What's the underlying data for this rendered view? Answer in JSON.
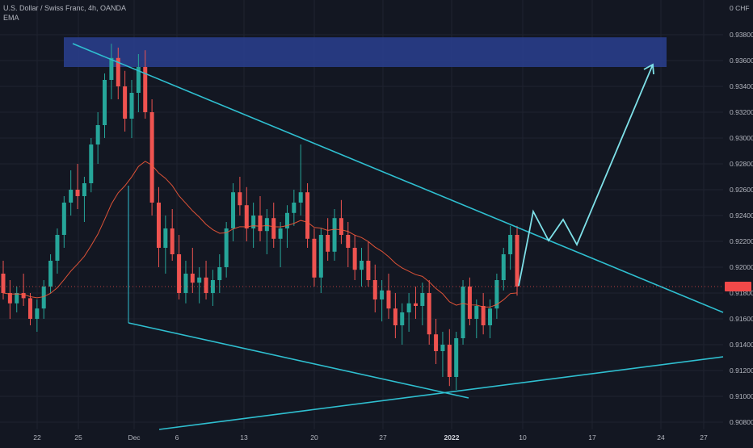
{
  "header": {
    "symbol_line": "U.S. Dollar / Swiss Franc, 4h, OANDA",
    "indicator": "EMA"
  },
  "colors": {
    "background": "#131722",
    "grid": "#1f2330",
    "up": "#26a69a",
    "down": "#ef5350",
    "ema": "#f4593a",
    "trendline": "#2fbfd0",
    "projection": "#7ee0e8",
    "zone": "#2a3f8f",
    "price_tag": "#f24949"
  },
  "chart_data": {
    "type": "candlestick",
    "currency_label": "0 CHF",
    "price_axis": {
      "ticks": [
        "0.93800",
        "0.93600",
        "0.93400",
        "0.93200",
        "0.93000",
        "0.92800",
        "0.92600",
        "0.92400",
        "0.92200",
        "0.92000",
        "0.91800",
        "0.91600",
        "0.91400",
        "0.91200",
        "0.91000",
        "0.90800"
      ],
      "range": [
        0.9075,
        0.94
      ]
    },
    "time_axis": {
      "ticks": [
        "22",
        "25",
        "Dec",
        "6",
        "13",
        "20",
        "27",
        "2022",
        "10",
        "17",
        "24",
        "27"
      ]
    },
    "last_price": 0.9185,
    "last_price_label": "",
    "candles": [
      [
        0.9195,
        0.9205,
        0.9175,
        0.918
      ],
      [
        0.918,
        0.919,
        0.916,
        0.9172
      ],
      [
        0.9172,
        0.9185,
        0.9165,
        0.918
      ],
      [
        0.918,
        0.9195,
        0.917,
        0.9176
      ],
      [
        0.9176,
        0.918,
        0.9155,
        0.916
      ],
      [
        0.916,
        0.9175,
        0.915,
        0.9168
      ],
      [
        0.9168,
        0.919,
        0.916,
        0.9185
      ],
      [
        0.9185,
        0.921,
        0.918,
        0.9205
      ],
      [
        0.9205,
        0.923,
        0.9195,
        0.9225
      ],
      [
        0.9225,
        0.9255,
        0.9215,
        0.925
      ],
      [
        0.925,
        0.9275,
        0.924,
        0.926
      ],
      [
        0.926,
        0.928,
        0.9245,
        0.9255
      ],
      [
        0.9255,
        0.927,
        0.9235,
        0.9265
      ],
      [
        0.9265,
        0.93,
        0.9258,
        0.9295
      ],
      [
        0.9295,
        0.932,
        0.928,
        0.931
      ],
      [
        0.931,
        0.935,
        0.93,
        0.9345
      ],
      [
        0.9345,
        0.9373,
        0.933,
        0.9362
      ],
      [
        0.9362,
        0.937,
        0.933,
        0.934
      ],
      [
        0.934,
        0.9352,
        0.9305,
        0.9315
      ],
      [
        0.9315,
        0.9345,
        0.93,
        0.9335
      ],
      [
        0.9335,
        0.9365,
        0.932,
        0.9355
      ],
      [
        0.9355,
        0.9368,
        0.9315,
        0.932
      ],
      [
        0.932,
        0.933,
        0.924,
        0.925
      ],
      [
        0.925,
        0.9262,
        0.92,
        0.9215
      ],
      [
        0.9215,
        0.924,
        0.9195,
        0.923
      ],
      [
        0.923,
        0.9245,
        0.9205,
        0.921
      ],
      [
        0.921,
        0.9225,
        0.9175,
        0.918
      ],
      [
        0.918,
        0.9205,
        0.9172,
        0.9195
      ],
      [
        0.9195,
        0.9215,
        0.918,
        0.9188
      ],
      [
        0.9188,
        0.92,
        0.9172,
        0.9192
      ],
      [
        0.9192,
        0.9205,
        0.9175,
        0.918
      ],
      [
        0.918,
        0.9198,
        0.917,
        0.919
      ],
      [
        0.919,
        0.921,
        0.918,
        0.92
      ],
      [
        0.92,
        0.9235,
        0.9192,
        0.923
      ],
      [
        0.923,
        0.9265,
        0.922,
        0.9258
      ],
      [
        0.9258,
        0.927,
        0.924,
        0.9248
      ],
      [
        0.9248,
        0.9262,
        0.922,
        0.923
      ],
      [
        0.923,
        0.925,
        0.9215,
        0.924
      ],
      [
        0.924,
        0.9255,
        0.922,
        0.9228
      ],
      [
        0.9228,
        0.9245,
        0.921,
        0.9238
      ],
      [
        0.9238,
        0.925,
        0.9215,
        0.9222
      ],
      [
        0.9222,
        0.9235,
        0.92,
        0.923
      ],
      [
        0.923,
        0.9248,
        0.9215,
        0.9242
      ],
      [
        0.9242,
        0.926,
        0.9232,
        0.925
      ],
      [
        0.925,
        0.9295,
        0.924,
        0.9258
      ],
      [
        0.9258,
        0.9265,
        0.9215,
        0.9222
      ],
      [
        0.9222,
        0.923,
        0.9185,
        0.9192
      ],
      [
        0.9192,
        0.923,
        0.918,
        0.9225
      ],
      [
        0.9225,
        0.9238,
        0.9205,
        0.9212
      ],
      [
        0.9212,
        0.9245,
        0.9205,
        0.9238
      ],
      [
        0.9238,
        0.9252,
        0.9218,
        0.9225
      ],
      [
        0.9225,
        0.9235,
        0.92,
        0.9215
      ],
      [
        0.9215,
        0.9225,
        0.919,
        0.9198
      ],
      [
        0.9198,
        0.9215,
        0.9185,
        0.9205
      ],
      [
        0.9205,
        0.922,
        0.9185,
        0.919
      ],
      [
        0.919,
        0.9202,
        0.9165,
        0.9175
      ],
      [
        0.9175,
        0.919,
        0.9158,
        0.9182
      ],
      [
        0.9182,
        0.9195,
        0.916,
        0.9168
      ],
      [
        0.9168,
        0.918,
        0.9145,
        0.9155
      ],
      [
        0.9155,
        0.9172,
        0.914,
        0.9165
      ],
      [
        0.9165,
        0.918,
        0.915,
        0.9172
      ],
      [
        0.9172,
        0.9185,
        0.916,
        0.917
      ],
      [
        0.917,
        0.9188,
        0.9155,
        0.918
      ],
      [
        0.918,
        0.919,
        0.914,
        0.9148
      ],
      [
        0.9148,
        0.916,
        0.9125,
        0.9135
      ],
      [
        0.9135,
        0.915,
        0.9115,
        0.914
      ],
      [
        0.914,
        0.9152,
        0.9108,
        0.9115
      ],
      [
        0.9115,
        0.915,
        0.9105,
        0.9145
      ],
      [
        0.9145,
        0.919,
        0.914,
        0.9185
      ],
      [
        0.9185,
        0.9192,
        0.9155,
        0.916
      ],
      [
        0.916,
        0.9175,
        0.9145,
        0.917
      ],
      [
        0.917,
        0.918,
        0.9148,
        0.9155
      ],
      [
        0.9155,
        0.9175,
        0.9145,
        0.9168
      ],
      [
        0.9168,
        0.9195,
        0.916,
        0.919
      ],
      [
        0.919,
        0.9215,
        0.9182,
        0.921
      ],
      [
        0.921,
        0.9232,
        0.9198,
        0.9225
      ],
      [
        0.9225,
        0.9232,
        0.9178,
        0.9185
      ]
    ],
    "annotations": {
      "resistance_zone": {
        "low": 0.936,
        "high": 0.9373
      }
    }
  }
}
